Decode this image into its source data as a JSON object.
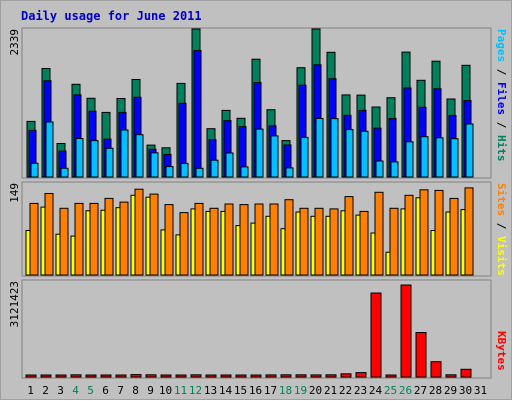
{
  "title": "Daily usage for June 2011",
  "colors": {
    "hits": "#00805c",
    "files": "#0000ff",
    "pages": "#00c0ff",
    "visits": "#ffff00",
    "sites": "#ff8000",
    "kbytes": "#ff0000",
    "weekend_day": "#00805c",
    "weekday_day": "#000000",
    "background": "#c0c0c0"
  },
  "chart_data": [
    {
      "type": "bar",
      "panel": "hits-files-pages",
      "ymax_label": "2339",
      "ylim": [
        0,
        2339
      ],
      "legend": [
        "Pages",
        "Files",
        "Hits"
      ],
      "categories": [
        "1",
        "2",
        "3",
        "4",
        "5",
        "6",
        "7",
        "8",
        "9",
        "10",
        "11",
        "12",
        "13",
        "14",
        "15",
        "16",
        "17",
        "18",
        "19",
        "20",
        "21",
        "22",
        "23",
        "24",
        "25",
        "26",
        "27",
        "28",
        "29",
        "30",
        "31"
      ],
      "series": [
        {
          "name": "Hits",
          "values": [
            878,
            1714,
            530,
            1465,
            1244,
            1021,
            1240,
            1541,
            504,
            462,
            1479,
            2339,
            764,
            1053,
            927,
            1861,
            1064,
            576,
            1728,
            2339,
            1970,
            1297,
            1294,
            1107,
            1253,
            1974,
            1529,
            1830,
            1232,
            1765,
            0
          ]
        },
        {
          "name": "Files",
          "values": [
            737,
            1520,
            409,
            1298,
            1039,
            598,
            1021,
            1260,
            437,
            357,
            1165,
            2000,
            590,
            890,
            796,
            1493,
            807,
            506,
            1451,
            1773,
            1553,
            974,
            1053,
            773,
            925,
            1407,
            1102,
            1394,
            972,
            1209,
            0
          ]
        },
        {
          "name": "Pages",
          "values": [
            218,
            870,
            137,
            608,
            575,
            453,
            743,
            668,
            382,
            165,
            215,
            137,
            265,
            380,
            160,
            757,
            650,
            144,
            626,
            924,
            923,
            749,
            723,
            253,
            239,
            556,
            637,
            619,
            605,
            838,
            0
          ]
        }
      ]
    },
    {
      "type": "bar",
      "panel": "visits-sites",
      "ymax_label": "149",
      "ylim": [
        0,
        149
      ],
      "legend": [
        "Sites",
        "Visits"
      ],
      "categories": [
        "1",
        "2",
        "3",
        "4",
        "5",
        "6",
        "7",
        "8",
        "9",
        "10",
        "11",
        "12",
        "13",
        "14",
        "15",
        "16",
        "17",
        "18",
        "19",
        "20",
        "21",
        "22",
        "23",
        "24",
        "25",
        "26",
        "27",
        "28",
        "29",
        "30",
        "31"
      ],
      "series": [
        {
          "name": "Visits",
          "values": [
            72,
            110,
            66,
            63,
            104,
            105,
            109,
            129,
            126,
            73,
            65,
            107,
            103,
            103,
            80,
            84,
            95,
            75,
            102,
            95,
            95,
            104,
            97,
            68,
            37,
            107,
            125,
            72,
            102,
            106,
            0
          ]
        },
        {
          "name": "Sites",
          "values": [
            116,
            132,
            108,
            116,
            116,
            124,
            118,
            139,
            131,
            114,
            101,
            116,
            108,
            115,
            114,
            115,
            115,
            122,
            108,
            108,
            107,
            127,
            103,
            134,
            108,
            129,
            138,
            137,
            124,
            141,
            0
          ]
        }
      ]
    },
    {
      "type": "bar",
      "panel": "kbytes",
      "ymax_label": "3121423",
      "ylim": [
        0,
        3121423
      ],
      "legend": [
        "KBytes"
      ],
      "categories": [
        "1",
        "2",
        "3",
        "4",
        "5",
        "6",
        "7",
        "8",
        "9",
        "10",
        "11",
        "12",
        "13",
        "14",
        "15",
        "16",
        "17",
        "18",
        "19",
        "20",
        "21",
        "22",
        "23",
        "24",
        "25",
        "26",
        "27",
        "28",
        "29",
        "30",
        "31"
      ],
      "series": [
        {
          "name": "KBytes",
          "values": [
            40000,
            40000,
            40000,
            75000,
            50000,
            45000,
            50000,
            80000,
            75000,
            60000,
            45000,
            75000,
            50000,
            50000,
            45000,
            60000,
            70000,
            75000,
            75000,
            70000,
            75000,
            110000,
            150000,
            2850000,
            40000,
            3121423,
            1510000,
            520000,
            75000,
            260000,
            0
          ]
        }
      ]
    }
  ],
  "x_labels": [
    {
      "text": "1",
      "weekend": false
    },
    {
      "text": "2",
      "weekend": false
    },
    {
      "text": "3",
      "weekend": false
    },
    {
      "text": "4",
      "weekend": true
    },
    {
      "text": "5",
      "weekend": true
    },
    {
      "text": "6",
      "weekend": false
    },
    {
      "text": "7",
      "weekend": false
    },
    {
      "text": "8",
      "weekend": false
    },
    {
      "text": "9",
      "weekend": false
    },
    {
      "text": "10",
      "weekend": false
    },
    {
      "text": "11",
      "weekend": true
    },
    {
      "text": "12",
      "weekend": true
    },
    {
      "text": "13",
      "weekend": false
    },
    {
      "text": "14",
      "weekend": false
    },
    {
      "text": "15",
      "weekend": false
    },
    {
      "text": "16",
      "weekend": false
    },
    {
      "text": "17",
      "weekend": false
    },
    {
      "text": "18",
      "weekend": true
    },
    {
      "text": "19",
      "weekend": true
    },
    {
      "text": "20",
      "weekend": false
    },
    {
      "text": "21",
      "weekend": false
    },
    {
      "text": "22",
      "weekend": false
    },
    {
      "text": "23",
      "weekend": false
    },
    {
      "text": "24",
      "weekend": false
    },
    {
      "text": "25",
      "weekend": true
    },
    {
      "text": "26",
      "weekend": true
    },
    {
      "text": "27",
      "weekend": false
    },
    {
      "text": "28",
      "weekend": false
    },
    {
      "text": "29",
      "weekend": false
    },
    {
      "text": "30",
      "weekend": false
    },
    {
      "text": "31",
      "weekend": false
    }
  ],
  "legend_text": {
    "top_pages": "Pages",
    "top_files": "Files",
    "top_hits": "Hits",
    "sep": " / ",
    "mid_sites": "Sites",
    "mid_visits": "Visits",
    "bottom_kbytes": "KBytes"
  }
}
